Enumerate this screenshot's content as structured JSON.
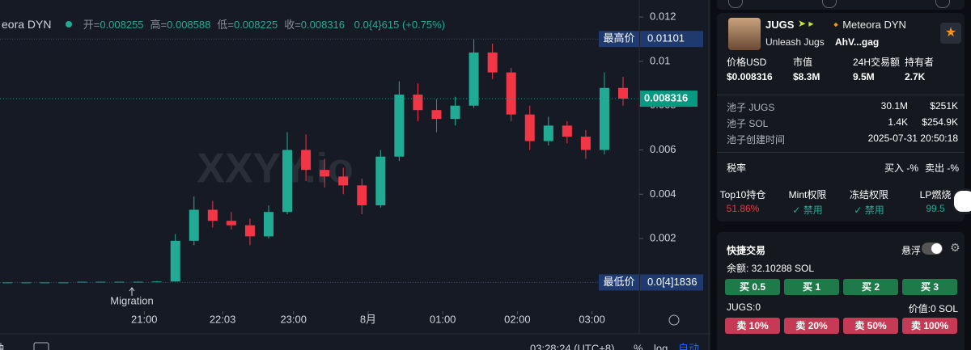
{
  "chart_data": {
    "type": "candlestick",
    "x": [
      1150,
      1165,
      1180,
      1195,
      1210,
      1225,
      1240,
      1255,
      1270,
      1285,
      1300,
      1315,
      1330,
      1345,
      1360,
      1375,
      1390,
      1405,
      1420,
      1435,
      1450,
      1465,
      1480,
      1495,
      1510,
      1525,
      1540,
      1555,
      1570,
      1585,
      1600,
      1615,
      1630,
      1645
    ],
    "open": [
      2e-05,
      2e-05,
      2e-05,
      2e-05,
      2e-05,
      5e-05,
      5e-05,
      5e-05,
      5e-05,
      6e-05,
      0.0019,
      0.0033,
      0.0028,
      0.0026,
      0.0021,
      0.0032,
      0.006,
      0.0051,
      0.0048,
      0.0044,
      0.0035,
      0.0057,
      0.0085,
      0.0078,
      0.0074,
      0.008,
      0.0104,
      0.0095,
      0.0076,
      0.0064,
      0.0071,
      0.0066,
      0.006,
      0.0088
    ],
    "high": [
      2e-05,
      2e-05,
      2e-05,
      2e-05,
      5e-05,
      5e-05,
      5e-05,
      6e-05,
      8e-05,
      0.0022,
      0.0039,
      0.0037,
      0.0032,
      0.0029,
      0.0035,
      0.0068,
      0.0067,
      0.0056,
      0.0052,
      0.0047,
      0.006,
      0.0091,
      0.009,
      0.0083,
      0.0084,
      0.01101,
      0.0108,
      0.0097,
      0.008,
      0.0075,
      0.0073,
      0.0069,
      0.0095,
      0.0093
    ],
    "low": [
      2e-05,
      2e-05,
      2e-05,
      2e-05,
      2e-05,
      5e-05,
      5e-05,
      4e-05,
      5e-05,
      6e-05,
      0.0017,
      0.0025,
      0.0024,
      0.0017,
      0.002,
      0.0031,
      0.0046,
      0.0043,
      0.004,
      0.0031,
      0.0034,
      0.0055,
      0.0073,
      0.0068,
      0.0071,
      0.0079,
      0.0092,
      0.0073,
      0.006,
      0.0062,
      0.0063,
      0.0056,
      0.0058,
      0.008
    ],
    "close": [
      2e-05,
      2e-05,
      2e-05,
      2e-05,
      5e-05,
      5e-05,
      5e-05,
      5e-05,
      6e-05,
      0.0019,
      0.0033,
      0.0028,
      0.0026,
      0.0021,
      0.0032,
      0.006,
      0.0051,
      0.0048,
      0.0044,
      0.0035,
      0.0057,
      0.0085,
      0.0078,
      0.0074,
      0.008,
      0.0104,
      0.0095,
      0.0076,
      0.0064,
      0.0071,
      0.0066,
      0.006,
      0.0088,
      0.008316
    ],
    "up_color": "#22ab94",
    "down_color": "#f23645",
    "ylim": [
      -0.00128,
      0.01277
    ],
    "yticks": [
      0.002,
      0.004,
      0.006,
      0.008,
      0.01,
      0.012
    ],
    "xlim": [
      1144,
      1658
    ],
    "xticks": [
      {
        "value": 1260,
        "label": "21:00"
      },
      {
        "value": 1323,
        "label": "22:03"
      },
      {
        "value": 1380,
        "label": "23:00"
      },
      {
        "value": 1440,
        "label": "8月"
      },
      {
        "value": 1500,
        "label": "01:00"
      },
      {
        "value": 1560,
        "label": "02:00"
      },
      {
        "value": 1620,
        "label": "03:00"
      }
    ],
    "watermark": "XXYY.io",
    "annotation": "Migration",
    "high_marker": {
      "label": "最高价",
      "price": 0.01101
    },
    "low_marker": {
      "label": "最低价",
      "price": 1.836e-05,
      "price_label": "0.0[4]1836"
    },
    "last_price": 0.008316,
    "last_color": "#089981"
  },
  "header": {
    "pair": "eora DYN",
    "ohlc": [
      {
        "k": "开=",
        "v": "0.008255"
      },
      {
        "k": "高=",
        "v": "0.008588"
      },
      {
        "k": "低=",
        "v": "0.008225"
      },
      {
        "k": "收=",
        "v": "0.008316"
      }
    ],
    "change": "0.0{4}615 (+0.75%)"
  },
  "toolbar": {
    "time": "03:28:24 (UTC+8)",
    "percent": "%",
    "log": "log",
    "auto": "自动"
  },
  "token": {
    "symbol": "JUGS",
    "dex": "Meteora DYN",
    "name": "Unleash Jugs",
    "address": "AhV...gag"
  },
  "stats": [
    {
      "label": "价格USD",
      "value": "$0.008316"
    },
    {
      "label": "市值",
      "value": "$8.3M"
    },
    {
      "label": "24H交易额",
      "value": "9.5M"
    },
    {
      "label": "持有者",
      "value": "2.7K"
    }
  ],
  "pool": [
    {
      "label": "池子 JUGS",
      "amount": "30.1M",
      "usd": "$251K"
    },
    {
      "label": "池子 SOL",
      "amount": "1.4K",
      "usd": "$254.9K"
    }
  ],
  "pool_created": {
    "label": "池子创建时间",
    "value": "2025-07-31 20:50:18"
  },
  "tax": {
    "label": "税率",
    "buy": "买入 -%",
    "sell": "卖出 -%"
  },
  "security": [
    {
      "label": "Top10持仓",
      "value": "51.86%"
    },
    {
      "label": "Mint权限",
      "value": "✓ 禁用"
    },
    {
      "label": "冻结权限",
      "value": "✓ 禁用"
    },
    {
      "label": "LP燃烧",
      "value": "99.5"
    }
  ],
  "quick_trade": {
    "title": "快捷交易",
    "float": "悬浮",
    "balance": "余额: 32.10288 SOL",
    "buy": [
      "买 0.5",
      "买 1",
      "买 2",
      "买 3"
    ],
    "holding": "JUGS:0",
    "worth": "价值:0 SOL",
    "sell": [
      "卖 10%",
      "卖 20%",
      "卖 50%",
      "卖 100%"
    ]
  }
}
